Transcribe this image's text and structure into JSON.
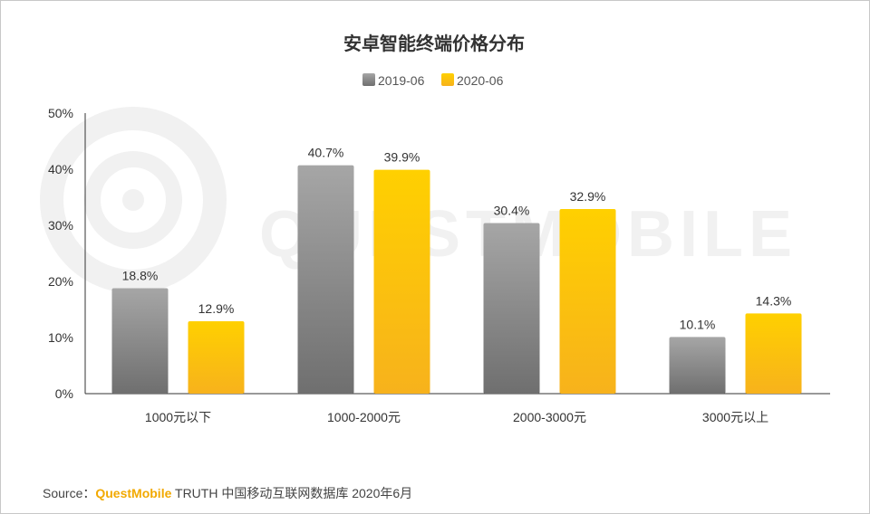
{
  "chart_data": {
    "type": "bar",
    "title": "安卓智能终端价格分布",
    "categories": [
      "1000元以下",
      "1000-2000元",
      "2000-3000元",
      "3000元以上"
    ],
    "series": [
      {
        "name": "2019-06",
        "values": [
          18.8,
          40.7,
          30.4,
          10.1
        ],
        "labels": [
          "18.8%",
          "40.7%",
          "30.4%",
          "10.1%"
        ]
      },
      {
        "name": "2020-06",
        "values": [
          12.9,
          39.9,
          32.9,
          14.3
        ],
        "labels": [
          "12.9%",
          "39.9%",
          "32.9%",
          "14.3%"
        ]
      }
    ],
    "yticks": [
      "0%",
      "10%",
      "20%",
      "30%",
      "40%",
      "50%"
    ],
    "ylim": [
      0,
      50
    ],
    "legend": "top-center",
    "grid": false,
    "colors": {
      "2019-06": {
        "top": "#a6a6a6",
        "bottom": "#6f6f6f"
      },
      "2020-06": {
        "top": "#ffd000",
        "bottom": "#f7b21c"
      }
    }
  },
  "watermark": "QUESTMOBILE",
  "source": {
    "prefix": "Source：",
    "brand": "QuestMobile",
    "rest": " TRUTH 中国移动互联网数据库 2020年6月"
  }
}
